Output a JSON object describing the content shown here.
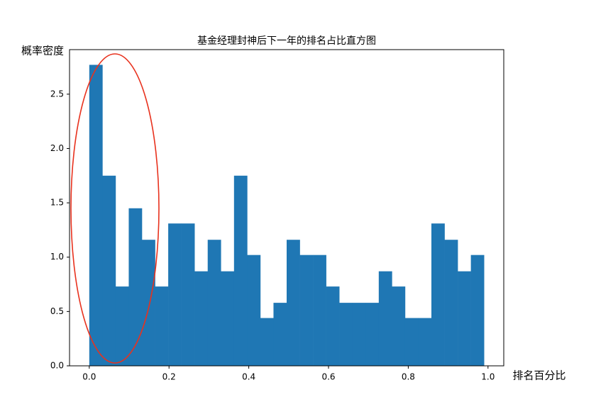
{
  "chart_data": {
    "type": "histogram",
    "title": "基金经理封神后下一年的排名占比直方图",
    "x_label": "排名百分比",
    "y_label": "概率密度",
    "color": "#1f77b4",
    "bins": [
      0,
      0.033,
      0.066,
      0.099,
      0.132,
      0.165,
      0.198,
      0.231,
      0.264,
      0.297,
      0.33,
      0.363,
      0.396,
      0.429,
      0.462,
      0.495,
      0.528,
      0.561,
      0.594,
      0.627,
      0.66,
      0.693,
      0.726,
      0.759,
      0.792,
      0.825,
      0.858,
      0.891,
      0.924,
      0.957,
      0.99
    ],
    "values": [
      2.77,
      1.75,
      0.73,
      1.45,
      1.16,
      0.73,
      1.31,
      1.31,
      0.87,
      1.16,
      0.87,
      1.75,
      1.02,
      0.44,
      0.58,
      1.16,
      1.02,
      1.02,
      0.73,
      0.58,
      0.58,
      0.58,
      0.87,
      0.73,
      0.44,
      0.44,
      1.31,
      1.16,
      0.87,
      1.02
    ],
    "xlim": [
      -0.0495,
      1.0395
    ],
    "ylim": [
      0,
      2.91
    ],
    "xticks": [
      {
        "value": 0,
        "label": "0.0"
      },
      {
        "value": 0.2,
        "label": "0.2"
      },
      {
        "value": 0.4,
        "label": "0.4"
      },
      {
        "value": 0.6,
        "label": "0.6"
      },
      {
        "value": 0.8,
        "label": "0.8"
      },
      {
        "value": 1,
        "label": "1.0"
      }
    ],
    "yticks": [
      {
        "value": 0,
        "label": "0.0"
      },
      {
        "value": 0.5,
        "label": "0.5"
      },
      {
        "value": 1,
        "label": "1.0"
      },
      {
        "value": 1.5,
        "label": "1.5"
      },
      {
        "value": 2,
        "label": "2.0"
      },
      {
        "value": 2.5,
        "label": "2.5"
      }
    ]
  }
}
